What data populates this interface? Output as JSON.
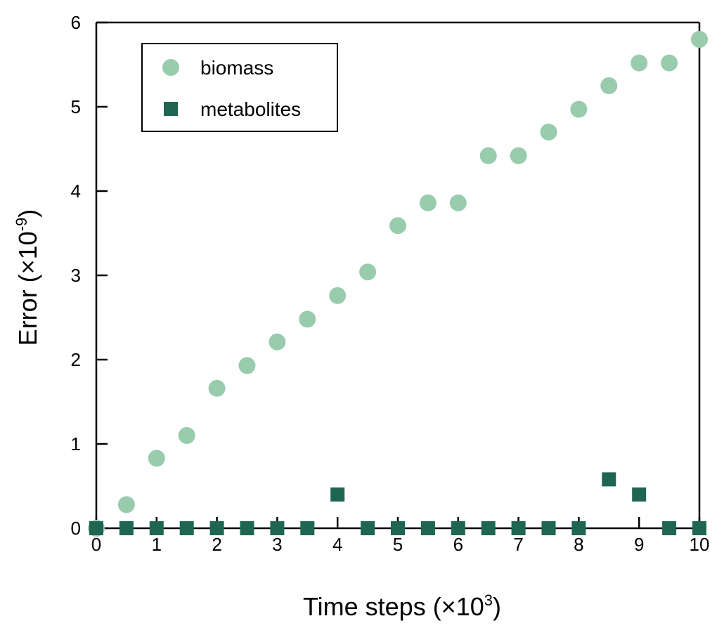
{
  "chart_data": {
    "type": "scatter",
    "title": "",
    "xlabel": "Time steps (×10",
    "xlabel_sup": "3",
    "xlabel_end": ")",
    "ylabel": "Error (×10",
    "ylabel_sup": "-9",
    "ylabel_end": ")",
    "xlim": [
      0,
      10
    ],
    "ylim": [
      0,
      6
    ],
    "xticks": [
      "0",
      "1",
      "2",
      "3",
      "4",
      "5",
      "6",
      "7",
      "8",
      "9",
      "10"
    ],
    "yticks": [
      "0",
      "1",
      "2",
      "3",
      "4",
      "5",
      "6"
    ],
    "grid": false,
    "legend_position": "top-left",
    "x": [
      0,
      0.5,
      1,
      1.5,
      2,
      2.5,
      3,
      3.5,
      4,
      4.5,
      5,
      5.5,
      6,
      6.5,
      7,
      7.5,
      8,
      8.5,
      9,
      9.5,
      10
    ],
    "series": [
      {
        "name": "biomass",
        "marker": "circle",
        "color": "#99cbad",
        "values": [
          0,
          0.28,
          0.83,
          1.1,
          1.66,
          1.93,
          2.21,
          2.48,
          2.76,
          3.04,
          3.59,
          3.86,
          3.86,
          4.42,
          4.42,
          4.7,
          4.97,
          5.25,
          5.52,
          5.52,
          5.8
        ]
      },
      {
        "name": "metabolites",
        "marker": "square",
        "color": "#1e6652",
        "values": [
          0,
          0,
          0,
          0,
          0,
          0,
          0,
          0,
          0.4,
          0,
          0,
          0,
          0,
          0,
          0,
          0,
          0,
          0.58,
          0.4,
          0,
          0
        ]
      }
    ]
  }
}
